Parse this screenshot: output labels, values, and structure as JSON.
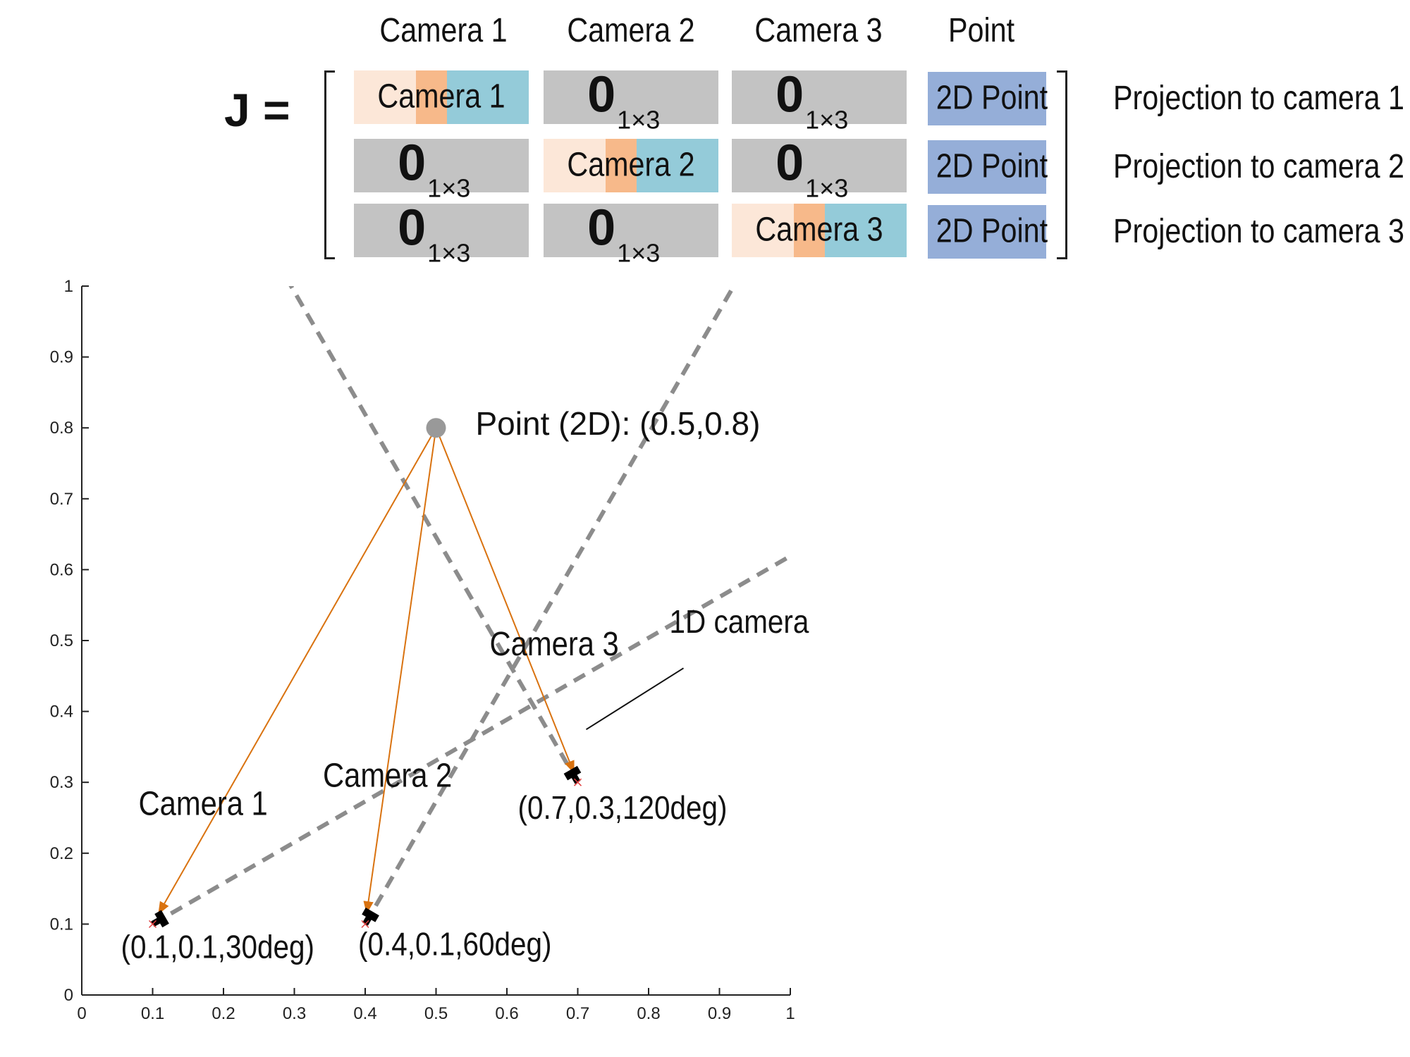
{
  "matrix": {
    "label": "J =",
    "column_headers": [
      "Camera 1",
      "Camera 2",
      "Camera 3",
      "Point"
    ],
    "zero_block": {
      "value": "0",
      "size": "1×3"
    },
    "camera_blocks": [
      "Camera 1",
      "Camera 2",
      "Camera 3"
    ],
    "point_block": "2D Point",
    "row_labels": [
      "Projection to camera 1",
      "Projection to camera 2",
      "Projection to camera 3"
    ],
    "colors": {
      "zero": "#c3c3c3",
      "camera_light": "#fce7d8",
      "camera_mid": "#f7b98a",
      "camera_blue": "#94cbd9",
      "point": "#95aed8"
    }
  },
  "chart_data": {
    "type": "scatter",
    "xlim": [
      0,
      1
    ],
    "ylim": [
      0,
      1
    ],
    "x_ticks": [
      "0",
      "0.1",
      "0.2",
      "0.3",
      "0.4",
      "0.5",
      "0.6",
      "0.7",
      "0.8",
      "0.9",
      "1"
    ],
    "y_ticks": [
      "0",
      "0.1",
      "0.2",
      "0.3",
      "0.4",
      "0.5",
      "0.6",
      "0.7",
      "0.8",
      "0.9",
      "1"
    ],
    "grid": false,
    "point": {
      "x": 0.5,
      "y": 0.8,
      "label": "Point (2D): (0.5,0.8)"
    },
    "cameras": [
      {
        "name": "Camera 1",
        "x": 0.1,
        "y": 0.1,
        "angle_deg": 30,
        "pose_label": "(0.1,0.1,30deg)"
      },
      {
        "name": "Camera 2",
        "x": 0.4,
        "y": 0.1,
        "angle_deg": 60,
        "pose_label": "(0.4,0.1,60deg)"
      },
      {
        "name": "Camera 3",
        "x": 0.7,
        "y": 0.3,
        "angle_deg": 120,
        "pose_label": "(0.7,0.3,120deg)"
      }
    ],
    "annotation": "1D camera",
    "colors": {
      "ray": "#d9720f",
      "view_line": "#8c8c8c",
      "point": "#999999",
      "camera": "#000000",
      "origin_mark": "#e04040"
    }
  }
}
